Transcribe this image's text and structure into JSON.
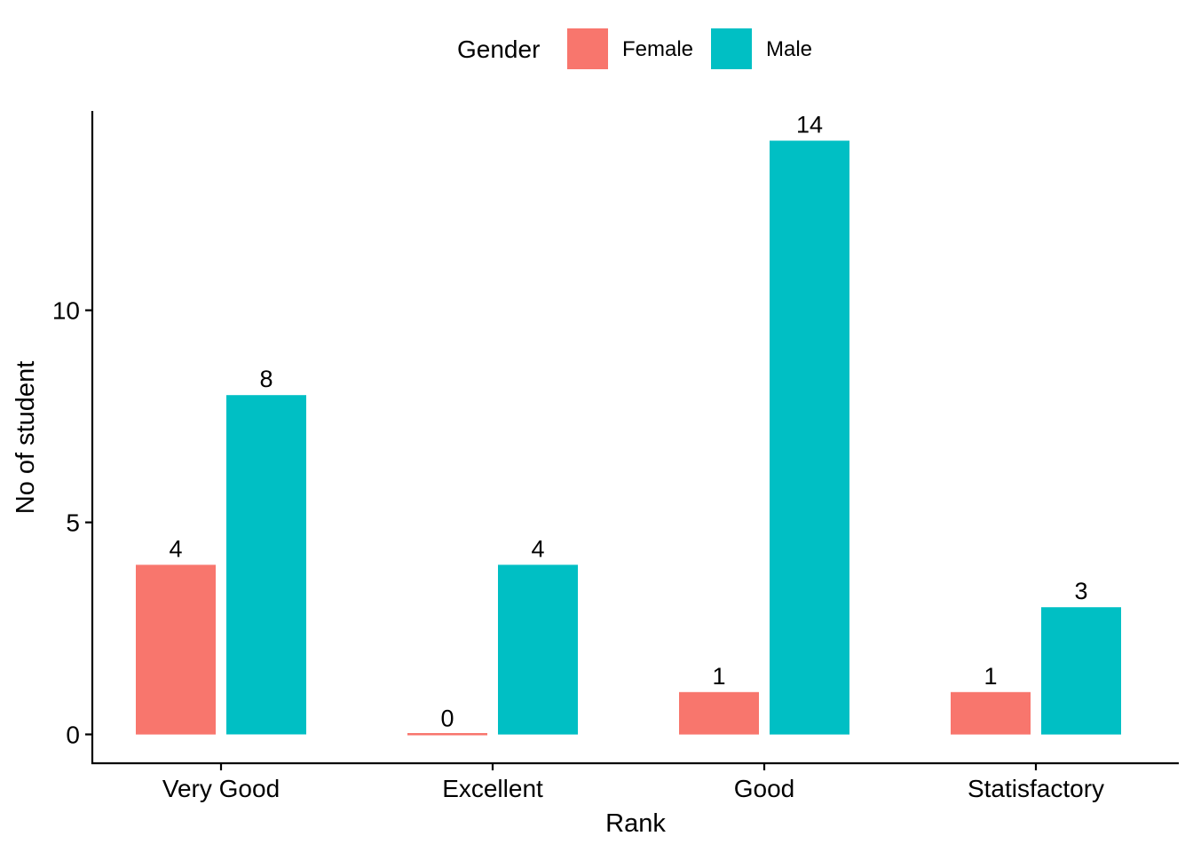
{
  "chart_data": {
    "type": "bar",
    "categories": [
      "Very Good",
      "Excellent",
      "Good",
      "Statisfactory"
    ],
    "series": [
      {
        "name": "Female",
        "values": [
          4,
          0,
          1,
          1
        ],
        "color": "#F8766D"
      },
      {
        "name": "Male",
        "values": [
          8,
          4,
          14,
          3
        ],
        "color": "#00BFC4"
      }
    ],
    "title": "",
    "xlabel": "Rank",
    "ylabel": "No of student",
    "ylim": [
      -0.7,
      14.7
    ],
    "yticks": [
      0,
      5,
      10
    ],
    "legend": {
      "title": "Gender",
      "position": "top"
    },
    "data_labels": true,
    "grid": false
  }
}
